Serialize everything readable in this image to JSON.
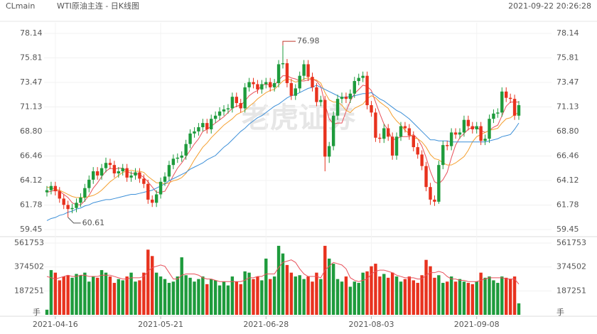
{
  "chart_data": {
    "type": "candlestick",
    "symbol": "CLmain",
    "title": "WTI原油主连 - 日K线图",
    "timestamp": "2021-09-22 20:26:28",
    "watermark": "老虎证券",
    "up_color": "#1e9b3c",
    "down_color": "#e8321e",
    "categories": [
      null,
      null,
      "2021-04-16",
      null,
      null,
      null,
      null,
      null,
      null,
      null,
      null,
      null,
      null,
      null,
      null,
      null,
      null,
      null,
      null,
      null,
      null,
      null,
      null,
      null,
      null,
      null,
      null,
      "2021-05-21",
      null,
      null,
      null,
      null,
      null,
      null,
      null,
      null,
      null,
      null,
      null,
      null,
      null,
      null,
      null,
      null,
      null,
      null,
      null,
      null,
      null,
      null,
      null,
      null,
      "2021-06-28",
      null,
      null,
      null,
      null,
      null,
      null,
      null,
      null,
      null,
      null,
      null,
      null,
      null,
      null,
      null,
      null,
      null,
      null,
      null,
      null,
      null,
      null,
      null,
      null,
      "2021-08-03",
      null,
      null,
      null,
      null,
      null,
      null,
      null,
      null,
      null,
      null,
      null,
      null,
      null,
      null,
      null,
      null,
      null,
      null,
      null,
      null,
      null,
      null,
      null,
      null,
      "2021-09-08",
      null,
      null,
      null,
      null,
      null,
      null,
      null,
      null,
      null,
      null
    ],
    "open": [
      63.0,
      63.2,
      63.6,
      63.1,
      62.4,
      61.8,
      61.4,
      61.5,
      62.0,
      62.5,
      63.4,
      64.2,
      65.0,
      64.6,
      65.3,
      65.8,
      65.6,
      64.8,
      65.0,
      65.3,
      64.4,
      64.6,
      64.9,
      64.3,
      63.8,
      62.3,
      62.0,
      62.8,
      64.0,
      64.5,
      65.6,
      66.2,
      66.3,
      66.5,
      67.6,
      68.6,
      68.8,
      69.2,
      69.6,
      69.0,
      70.0,
      70.3,
      70.7,
      70.9,
      71.0,
      72.1,
      71.5,
      71.0,
      73.0,
      73.5,
      73.3,
      72.8,
      73.3,
      73.5,
      73.0,
      73.4,
      75.2,
      75.3,
      73.4,
      72.2,
      72.9,
      74.1,
      75.2,
      74.0,
      73.0,
      71.6,
      71.8,
      66.4,
      67.4,
      70.3,
      71.9,
      72.1,
      71.9,
      72.4,
      73.6,
      73.9,
      74.1,
      71.3,
      70.6,
      68.2,
      68.1,
      69.1,
      68.3,
      66.5,
      68.3,
      69.3,
      69.1,
      68.4,
      67.3,
      66.6,
      65.5,
      63.5,
      62.3,
      62.1,
      65.6,
      67.5,
      67.4,
      68.7,
      68.5,
      68.7,
      69.9,
      69.3,
      69.0,
      69.3,
      67.9,
      68.1,
      70.0,
      70.5,
      70.6,
      72.6,
      72.0,
      71.9,
      70.3
    ],
    "high": [
      63.6,
      64.0,
      64.0,
      63.5,
      62.8,
      62.2,
      61.9,
      62.4,
      62.9,
      63.8,
      64.6,
      65.4,
      65.4,
      65.7,
      66.3,
      66.2,
      66.0,
      65.4,
      65.7,
      65.7,
      65.0,
      65.3,
      65.3,
      64.7,
      64.2,
      62.7,
      63.2,
      64.4,
      64.9,
      66.0,
      66.6,
      66.7,
      66.9,
      68.0,
      69.0,
      69.2,
      69.6,
      70.0,
      70.0,
      70.4,
      70.7,
      71.1,
      71.3,
      71.4,
      72.5,
      72.5,
      71.9,
      73.4,
      73.9,
      73.9,
      73.7,
      73.7,
      73.9,
      73.9,
      73.8,
      75.6,
      76.98,
      75.7,
      73.8,
      73.3,
      74.5,
      75.6,
      75.6,
      74.4,
      73.4,
      72.2,
      72.2,
      67.8,
      70.7,
      72.3,
      72.5,
      72.5,
      72.8,
      74.0,
      74.3,
      74.5,
      74.5,
      71.7,
      71.0,
      68.6,
      69.5,
      69.5,
      68.7,
      68.7,
      69.7,
      69.7,
      69.5,
      68.8,
      67.7,
      67.0,
      65.9,
      63.9,
      62.7,
      66.0,
      67.9,
      67.9,
      69.1,
      69.1,
      69.1,
      70.3,
      70.3,
      69.7,
      69.7,
      69.7,
      68.5,
      70.4,
      70.9,
      71.0,
      73.0,
      73.0,
      72.4,
      72.3,
      71.7
    ],
    "low": [
      62.6,
      62.8,
      62.7,
      62.0,
      61.4,
      60.61,
      61.0,
      61.1,
      61.6,
      62.1,
      63.0,
      63.8,
      64.2,
      64.2,
      64.9,
      65.2,
      64.4,
      64.4,
      64.6,
      64.0,
      64.0,
      64.2,
      63.9,
      63.4,
      61.9,
      61.6,
      61.6,
      62.4,
      63.6,
      64.1,
      65.2,
      65.8,
      65.9,
      66.1,
      67.2,
      68.2,
      68.4,
      68.8,
      68.6,
      68.6,
      69.6,
      69.9,
      70.3,
      70.5,
      70.6,
      71.1,
      70.6,
      70.6,
      72.6,
      72.9,
      72.4,
      72.4,
      72.9,
      72.6,
      72.6,
      73.0,
      74.8,
      73.0,
      71.8,
      71.8,
      72.5,
      73.7,
      73.6,
      72.6,
      71.2,
      71.2,
      65.0,
      65.8,
      67.0,
      69.9,
      71.5,
      71.5,
      71.5,
      72.0,
      73.2,
      73.5,
      70.9,
      70.2,
      67.8,
      67.7,
      67.7,
      67.9,
      66.1,
      66.1,
      67.9,
      68.7,
      68.0,
      66.9,
      66.2,
      65.1,
      63.1,
      61.8,
      61.7,
      61.9,
      65.2,
      67.0,
      67.0,
      68.1,
      68.1,
      68.3,
      68.9,
      68.6,
      68.6,
      67.5,
      67.5,
      67.7,
      69.6,
      70.1,
      70.2,
      71.6,
      71.5,
      69.9,
      69.9
    ],
    "close": [
      63.2,
      63.6,
      63.1,
      62.4,
      61.8,
      61.4,
      61.5,
      62.0,
      62.5,
      63.4,
      64.2,
      65.0,
      64.6,
      65.3,
      65.8,
      65.6,
      64.8,
      65.0,
      65.3,
      64.4,
      64.6,
      64.9,
      64.3,
      63.8,
      62.3,
      62.0,
      62.8,
      64.0,
      64.5,
      65.6,
      66.2,
      66.3,
      66.5,
      67.6,
      68.6,
      68.8,
      69.2,
      69.6,
      69.0,
      70.0,
      70.3,
      70.7,
      70.9,
      71.0,
      72.1,
      71.5,
      71.0,
      73.0,
      73.5,
      73.3,
      72.8,
      73.3,
      73.5,
      73.0,
      73.4,
      75.2,
      75.3,
      73.4,
      72.2,
      72.9,
      74.1,
      75.2,
      74.0,
      73.0,
      71.6,
      71.8,
      66.4,
      67.4,
      70.3,
      71.9,
      72.1,
      71.9,
      72.4,
      73.6,
      73.9,
      74.1,
      71.3,
      70.6,
      68.2,
      68.1,
      69.1,
      68.3,
      66.5,
      68.3,
      69.3,
      69.1,
      68.4,
      67.3,
      66.6,
      65.5,
      63.5,
      62.3,
      62.1,
      65.6,
      67.5,
      67.4,
      68.7,
      68.5,
      68.7,
      69.9,
      69.3,
      69.0,
      69.3,
      67.9,
      68.1,
      70.0,
      70.5,
      70.6,
      72.6,
      72.0,
      71.9,
      70.3,
      71.3
    ],
    "ma": [
      {
        "color": "#e8505a",
        "values": [
          63.0,
          63.1,
          63.2,
          63.1,
          62.8,
          62.5,
          62.0,
          61.8,
          61.8,
          62.2,
          62.7,
          63.4,
          63.9,
          64.5,
          65.0,
          65.3,
          65.2,
          65.3,
          65.3,
          65.0,
          64.8,
          64.8,
          64.7,
          64.4,
          64.0,
          63.5,
          63.0,
          63.0,
          63.1,
          63.8,
          64.6,
          65.3,
          65.8,
          66.4,
          67.0,
          67.6,
          68.1,
          68.8,
          69.0,
          69.3,
          69.6,
          69.9,
          70.2,
          70.6,
          71.0,
          71.2,
          71.3,
          71.7,
          72.2,
          72.5,
          72.7,
          73.2,
          73.3,
          73.2,
          73.2,
          73.7,
          74.1,
          74.1,
          73.9,
          73.8,
          73.6,
          73.6,
          73.7,
          73.8,
          73.6,
          73.1,
          71.4,
          70.0,
          69.5,
          69.6,
          69.6,
          70.7,
          71.7,
          72.4,
          72.8,
          73.2,
          73.1,
          72.7,
          71.6,
          70.5,
          69.5,
          68.9,
          68.0,
          68.1,
          68.3,
          68.3,
          68.3,
          68.5,
          68.1,
          67.4,
          66.3,
          65.0,
          64.0,
          63.8,
          64.2,
          64.9,
          66.3,
          67.5,
          68.2,
          68.6,
          69.0,
          69.2,
          69.2,
          68.9,
          68.7,
          68.9,
          69.2,
          69.4,
          70.3,
          71.2,
          71.6,
          71.6,
          71.6
        ]
      },
      {
        "color": "#f5a030",
        "values": [
          63.5,
          63.4,
          63.3,
          63.2,
          63.0,
          62.8,
          62.6,
          62.5,
          62.5,
          62.5,
          62.6,
          62.7,
          62.9,
          63.2,
          63.6,
          64.0,
          64.3,
          64.6,
          64.9,
          65.0,
          65.1,
          65.0,
          65.0,
          64.9,
          64.5,
          64.2,
          63.9,
          63.9,
          63.8,
          63.9,
          64.1,
          64.2,
          64.4,
          64.8,
          65.4,
          66.1,
          66.7,
          67.3,
          67.7,
          68.2,
          68.6,
          69.0,
          69.4,
          69.7,
          70.0,
          70.4,
          70.6,
          70.8,
          71.2,
          71.5,
          71.9,
          72.2,
          72.5,
          72.7,
          72.8,
          73.2,
          73.6,
          73.8,
          73.7,
          73.5,
          73.6,
          73.8,
          73.9,
          73.8,
          73.7,
          73.4,
          72.5,
          71.8,
          71.6,
          71.6,
          71.3,
          70.8,
          70.6,
          71.0,
          71.2,
          71.4,
          71.9,
          72.2,
          72.0,
          71.6,
          71.3,
          71.0,
          70.3,
          69.8,
          69.4,
          68.9,
          68.6,
          68.2,
          68.1,
          67.8,
          67.3,
          66.6,
          66.2,
          66.1,
          65.8,
          65.6,
          65.6,
          65.8,
          66.1,
          66.4,
          67.0,
          67.8,
          68.3,
          68.5,
          68.7,
          68.9,
          69.0,
          69.1,
          69.6,
          70.0,
          70.1,
          70.4,
          70.6
        ]
      },
      {
        "color": "#3c8fd8",
        "values": [
          60.3,
          60.5,
          60.6,
          60.8,
          60.9,
          61.1,
          61.2,
          61.4,
          61.5,
          61.7,
          61.8,
          62.0,
          62.1,
          62.2,
          62.3,
          62.3,
          62.4,
          62.5,
          62.6,
          62.7,
          62.8,
          62.8,
          62.9,
          63.0,
          63.1,
          63.2,
          63.4,
          63.6,
          63.8,
          64.1,
          64.3,
          64.5,
          64.7,
          64.9,
          65.2,
          65.4,
          65.6,
          65.8,
          66.1,
          66.3,
          66.5,
          66.9,
          67.3,
          67.6,
          68.0,
          68.4,
          68.8,
          69.1,
          69.5,
          69.8,
          70.1,
          70.3,
          70.6,
          70.9,
          71.2,
          71.4,
          71.7,
          72.0,
          72.2,
          72.3,
          72.5,
          72.7,
          72.9,
          73.0,
          73.2,
          73.0,
          72.8,
          72.6,
          72.4,
          72.2,
          72.0,
          72.1,
          72.1,
          72.2,
          72.3,
          72.4,
          72.4,
          72.5,
          72.2,
          71.9,
          71.7,
          71.4,
          71.1,
          70.8,
          70.6,
          70.3,
          70.0,
          69.6,
          69.2,
          68.8,
          68.4,
          68.0,
          68.0,
          67.9,
          67.9,
          67.9,
          67.8,
          67.8,
          67.8,
          67.8,
          67.8,
          67.8,
          67.8,
          67.8,
          67.8,
          67.9,
          68.0,
          68.1,
          68.3,
          68.4,
          68.5,
          69.0,
          69.6
        ]
      }
    ],
    "ylim": [
      59.45,
      78.14
    ],
    "yticks": [
      78.14,
      75.81,
      73.47,
      71.13,
      {
        "value": 68.8,
        "label": "68.80"
      },
      66.46,
      64.12,
      61.78,
      59.45
    ],
    "high_annotation": 76.98,
    "low_annotation": 60.61,
    "grid": true,
    "volume": {
      "unit": "手",
      "color": "#e8505a",
      "ylim": [
        0,
        561753
      ],
      "yticks": [
        187251,
        374502,
        561753
      ],
      "values": [
        40000,
        350000,
        330000,
        270000,
        300000,
        310000,
        290000,
        320000,
        310000,
        330000,
        260000,
        300000,
        290000,
        350000,
        330000,
        300000,
        250000,
        280000,
        270000,
        300000,
        330000,
        260000,
        270000,
        330000,
        510000,
        460000,
        330000,
        300000,
        280000,
        250000,
        260000,
        300000,
        450000,
        310000,
        290000,
        260000,
        280000,
        300000,
        240000,
        280000,
        270000,
        230000,
        260000,
        230000,
        300000,
        260000,
        240000,
        340000,
        330000,
        280000,
        300000,
        270000,
        440000,
        280000,
        300000,
        540000,
        480000,
        390000,
        330000,
        300000,
        310000,
        280000,
        300000,
        260000,
        330000,
        280000,
        540000,
        440000,
        400000,
        280000,
        260000,
        300000,
        220000,
        260000,
        250000,
        330000,
        340000,
        380000,
        400000,
        300000,
        320000,
        290000,
        330000,
        300000,
        260000,
        280000,
        300000,
        270000,
        250000,
        310000,
        430000,
        380000,
        290000,
        310000,
        250000,
        260000,
        300000,
        260000,
        280000,
        260000,
        250000,
        240000,
        260000,
        330000,
        290000,
        300000,
        270000,
        250000,
        300000,
        290000,
        280000,
        300000,
        90000
      ],
      "ma_values": [
        300000,
        290000,
        280000,
        290000,
        300000,
        310000,
        300000,
        300000,
        310000,
        310000,
        300000,
        300000,
        300000,
        310000,
        310000,
        310000,
        300000,
        290000,
        280000,
        280000,
        290000,
        290000,
        290000,
        300000,
        340000,
        370000,
        380000,
        390000,
        380000,
        330000,
        280000,
        280000,
        310000,
        320000,
        320000,
        320000,
        310000,
        290000,
        280000,
        280000,
        270000,
        260000,
        260000,
        260000,
        260000,
        260000,
        260000,
        270000,
        290000,
        290000,
        300000,
        300000,
        320000,
        320000,
        320000,
        370000,
        410000,
        420000,
        430000,
        410000,
        360000,
        320000,
        300000,
        300000,
        300000,
        290000,
        350000,
        380000,
        410000,
        400000,
        390000,
        360000,
        290000,
        270000,
        260000,
        270000,
        280000,
        320000,
        340000,
        350000,
        350000,
        340000,
        330000,
        310000,
        300000,
        290000,
        290000,
        290000,
        280000,
        280000,
        310000,
        330000,
        330000,
        340000,
        330000,
        300000,
        280000,
        280000,
        270000,
        270000,
        260000,
        260000,
        260000,
        270000,
        280000,
        290000,
        290000,
        290000,
        290000,
        280000,
        280000,
        280000,
        240000
      ]
    }
  }
}
